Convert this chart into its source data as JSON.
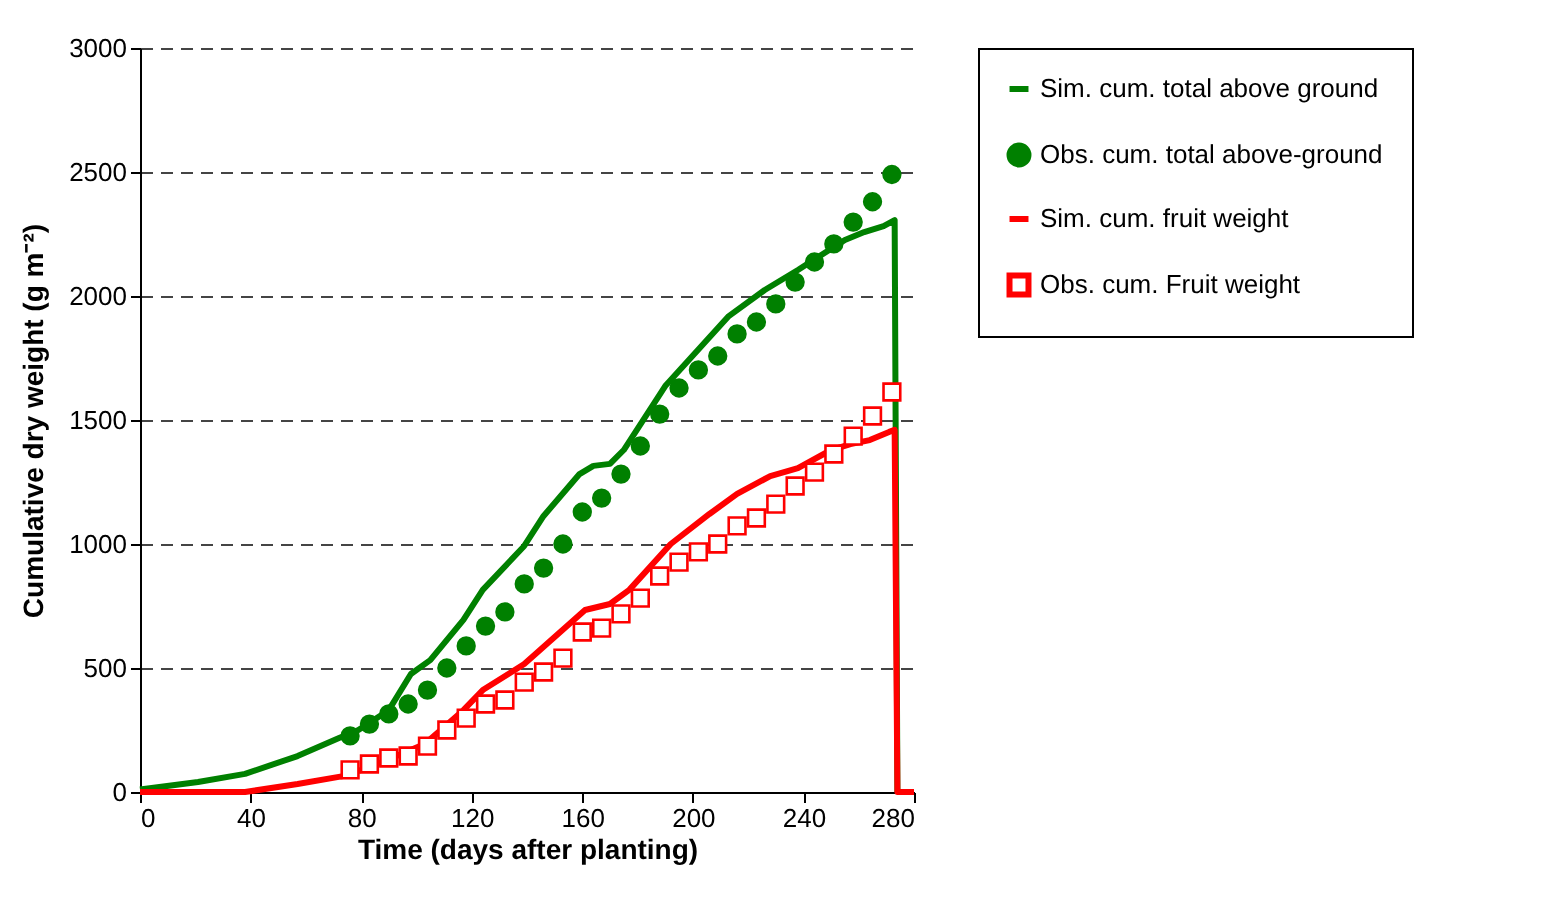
{
  "chart_data": {
    "type": "line",
    "xlabel": "Time (days after planting)",
    "ylabel": "Cumulative dry weight (g m⁻²)",
    "xlim": [
      0,
      280
    ],
    "xticks": [
      0,
      40,
      80,
      120,
      160,
      200,
      240,
      280
    ],
    "ylim": [
      0,
      3000
    ],
    "yticks": [
      0,
      500,
      1000,
      1500,
      2000,
      2500,
      3000
    ],
    "grid": "y",
    "legend": "right",
    "series": [
      {
        "name": "Sim. cum. total above ground",
        "type": "line",
        "color": "#008000",
        "x": [
          0,
          21,
          38,
          57,
          72,
          79,
          90,
          98,
          105,
          117,
          124,
          139,
          146,
          159,
          164,
          170,
          175,
          190,
          213,
          226,
          238,
          255,
          262,
          269,
          273,
          274
        ],
        "values": [
          10,
          40,
          73,
          145,
          218,
          250,
          330,
          476,
          532,
          694,
          815,
          992,
          1113,
          1282,
          1315,
          1323,
          1379,
          1637,
          1919,
          2024,
          2105,
          2226,
          2258,
          2282,
          2306,
          0
        ]
      },
      {
        "name": "Obs. cum. total above-ground",
        "type": "scatter",
        "marker": "circle",
        "color": "#008000",
        "x": [
          76,
          83,
          90,
          97,
          104,
          111,
          118,
          125,
          132,
          139,
          146,
          153,
          160,
          167,
          174,
          181,
          188,
          195,
          202,
          209,
          216,
          223,
          230,
          237,
          244,
          251,
          258,
          265,
          272
        ],
        "values": [
          226,
          274,
          315,
          355,
          411,
          500,
          589,
          669,
          726,
          839,
          903,
          1000,
          1129,
          1185,
          1282,
          1395,
          1524,
          1629,
          1702,
          1758,
          1847,
          1895,
          1968,
          2056,
          2137,
          2210,
          2298,
          2380,
          2490
        ]
      },
      {
        "name": "Sim. cum. fruit weight",
        "type": "line",
        "color": "#ff0000",
        "x": [
          0,
          38,
          57,
          74,
          86,
          103,
          117,
          124,
          139,
          161,
          170,
          177,
          192,
          206,
          216,
          228,
          238,
          250,
          257,
          264,
          271,
          273,
          274,
          280
        ],
        "values": [
          0,
          0,
          32,
          65,
          113,
          194,
          330,
          411,
          516,
          734,
          758,
          815,
          1000,
          1121,
          1202,
          1274,
          1306,
          1379,
          1403,
          1419,
          1452,
          1460,
          0,
          0
        ]
      },
      {
        "name": "Obs. cum. Fruit weight",
        "type": "scatter",
        "marker": "square",
        "color": "#ff0000",
        "x": [
          76,
          83,
          90,
          97,
          104,
          111,
          118,
          125,
          132,
          139,
          146,
          153,
          160,
          167,
          174,
          181,
          188,
          195,
          202,
          209,
          216,
          223,
          230,
          237,
          244,
          251,
          258,
          265,
          272
        ],
        "values": [
          89,
          113,
          137,
          145,
          185,
          250,
          298,
          355,
          371,
          443,
          484,
          540,
          645,
          661,
          718,
          782,
          871,
          927,
          968,
          1000,
          1073,
          1105,
          1161,
          1234,
          1290,
          1363,
          1435,
          1516,
          1613
        ]
      }
    ]
  }
}
